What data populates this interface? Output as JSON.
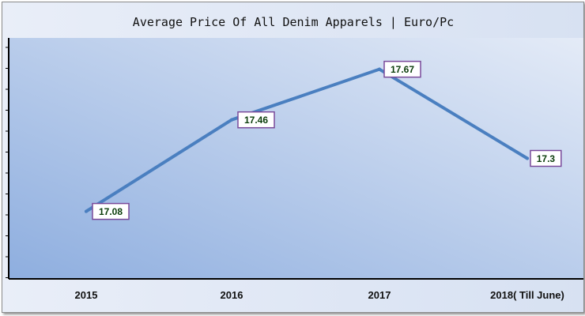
{
  "chart_data": {
    "type": "line",
    "title": "Average Price Of All Denim Apparels | Euro/Pc",
    "categories": [
      "2015",
      "2016",
      "2017",
      "2018( Till June)"
    ],
    "series": [
      {
        "values": [
          17.08,
          17.46,
          17.67,
          17.3
        ]
      }
    ],
    "data_labels": [
      "17.08",
      "17.46",
      "17.67",
      "17.3"
    ],
    "xlabel": "",
    "ylabel": "",
    "ylim": [
      16.8,
      17.8
    ],
    "grid": false,
    "legend": "none"
  },
  "colors": {
    "line": "#4a7fc0",
    "label_border": "#7a4a9a",
    "label_fill": "#ffffff",
    "label_text": "#0b3d0b",
    "plot_gradient_dark": "#8eaedf",
    "plot_gradient_light": "#e4ebf7",
    "axis": "#000000"
  }
}
